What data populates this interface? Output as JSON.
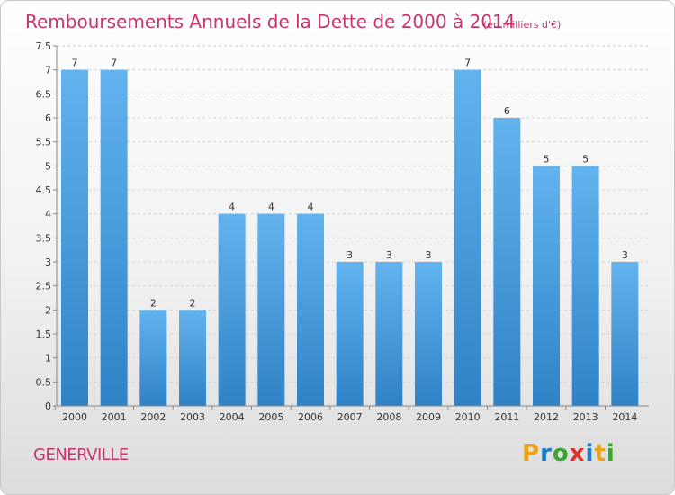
{
  "header": {
    "title": "Remboursements Annuels de la Dette de 2000 à 2014",
    "unit": "(en milliers d'€)"
  },
  "footer": {
    "commune": "GENERVILLE",
    "logo_letters": [
      "P",
      "r",
      "o",
      "x",
      "i",
      "t",
      "i"
    ],
    "logo_colors": [
      "#e8a317",
      "#1e7bc4",
      "#3aa535",
      "#d9342b",
      "#1e7bc4",
      "#e8a317",
      "#3aa535"
    ]
  },
  "colors": {
    "accent": "#c8356e",
    "bar": "#4b9de0",
    "bar_light": "#62b3ee",
    "bar_dark": "#2f82c6",
    "grid": "#d0d0d0"
  },
  "chart_data": {
    "type": "bar",
    "title": "Remboursements Annuels de la Dette de 2000 à 2014",
    "subtitle": "(en milliers d'€)",
    "xlabel": "",
    "ylabel": "",
    "categories": [
      "2000",
      "2001",
      "2002",
      "2003",
      "2004",
      "2005",
      "2006",
      "2007",
      "2008",
      "2009",
      "2010",
      "2011",
      "2012",
      "2013",
      "2014"
    ],
    "values": [
      7,
      7,
      2,
      2,
      4,
      4,
      4,
      3,
      3,
      3,
      7,
      6,
      5,
      5,
      3
    ],
    "data_labels": [
      "7",
      "7",
      "2",
      "2",
      "4",
      "4",
      "4",
      "3",
      "3",
      "3",
      "7",
      "6",
      "5",
      "5",
      "3"
    ],
    "ylim": [
      0,
      7.5
    ],
    "yticks": [
      0,
      0.5,
      1,
      1.5,
      2,
      2.5,
      3,
      3.5,
      4,
      4.5,
      5,
      5.5,
      6,
      6.5,
      7,
      7.5
    ],
    "ytick_labels": [
      "0",
      "0.5",
      "1",
      "1.5",
      "2",
      "2.5",
      "3",
      "3.5",
      "4",
      "4.5",
      "5",
      "5.5",
      "6",
      "6.5",
      "7",
      "7.5"
    ],
    "grid": "horizontal dashed",
    "legend": "none"
  }
}
